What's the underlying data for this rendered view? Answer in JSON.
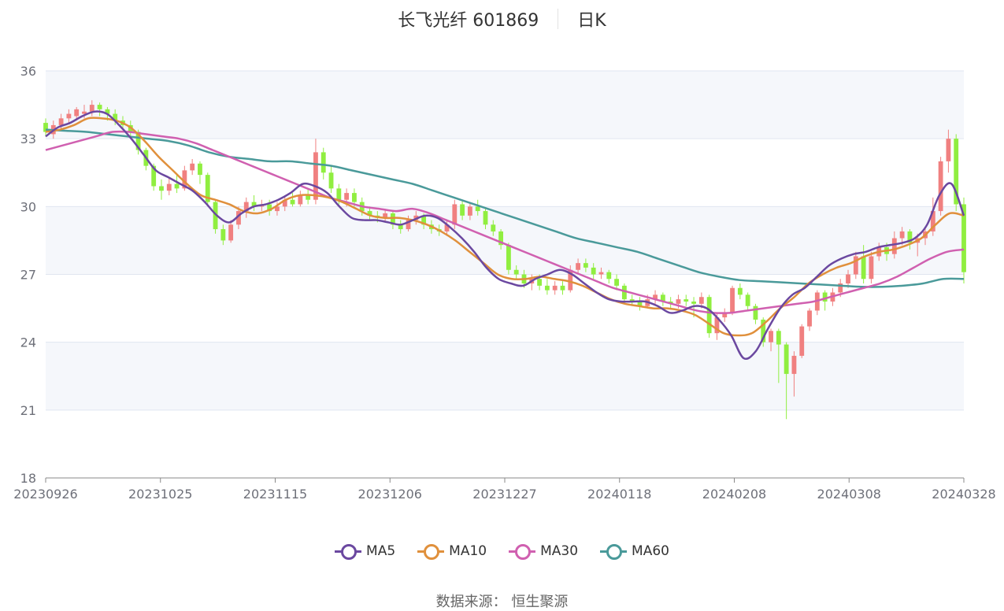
{
  "title": {
    "name": "长飞光纤 601869",
    "period": "日K"
  },
  "source_text": "数据来源： 恒生聚源",
  "colors": {
    "up": "#f08080",
    "down": "#90ee40",
    "ma5": "#6b48a0",
    "ma10": "#e0903c",
    "ma30": "#d060b0",
    "ma60": "#4a9a9a",
    "grid": "#e0e6f0",
    "band": "#f5f7fb",
    "axis": "#888888",
    "tick_text": "#6e7079"
  },
  "chart_data": {
    "type": "candlestick",
    "title": "长飞光纤 601869",
    "ylim": [
      18,
      36
    ],
    "y_ticks": [
      18,
      21,
      24,
      27,
      30,
      33,
      36
    ],
    "x_tick_labels": [
      "20230926",
      "20231025",
      "20231115",
      "20231206",
      "20231227",
      "20240118",
      "20240208",
      "20240308",
      "20240328"
    ],
    "bar_count": 120,
    "legend": [
      "MA5",
      "MA10",
      "MA30",
      "MA60"
    ],
    "candles": [
      [
        33.7,
        33.3,
        33.9,
        33.1
      ],
      [
        33.2,
        33.6,
        33.8,
        33.0
      ],
      [
        33.6,
        33.9,
        34.1,
        33.4
      ],
      [
        33.9,
        34.1,
        34.3,
        33.7
      ],
      [
        34.0,
        34.3,
        34.4,
        33.8
      ],
      [
        34.1,
        34.2,
        34.5,
        33.9
      ],
      [
        34.2,
        34.5,
        34.7,
        34.0
      ],
      [
        34.5,
        34.3,
        34.6,
        34.0
      ],
      [
        34.3,
        34.1,
        34.4,
        33.8
      ],
      [
        34.1,
        33.8,
        34.3,
        33.6
      ],
      [
        33.8,
        33.6,
        34.0,
        33.4
      ],
      [
        33.6,
        33.3,
        33.8,
        33.0
      ],
      [
        33.3,
        32.5,
        33.4,
        32.3
      ],
      [
        32.5,
        31.8,
        32.6,
        31.6
      ],
      [
        31.8,
        30.9,
        31.9,
        30.7
      ],
      [
        30.9,
        30.7,
        31.2,
        30.3
      ],
      [
        30.7,
        31.0,
        31.3,
        30.5
      ],
      [
        31.0,
        30.8,
        31.4,
        30.6
      ],
      [
        30.8,
        31.6,
        31.8,
        30.7
      ],
      [
        31.6,
        31.9,
        32.1,
        31.4
      ],
      [
        31.9,
        31.4,
        32.0,
        31.0
      ],
      [
        31.4,
        30.2,
        31.5,
        30.0
      ],
      [
        30.2,
        29.0,
        30.3,
        28.8
      ],
      [
        29.0,
        28.5,
        29.2,
        28.3
      ],
      [
        28.5,
        29.2,
        29.4,
        28.4
      ],
      [
        29.2,
        29.8,
        30.0,
        29.0
      ],
      [
        29.8,
        30.2,
        30.4,
        29.5
      ],
      [
        30.2,
        30.0,
        30.5,
        29.8
      ],
      [
        30.0,
        30.1,
        30.3,
        29.8
      ],
      [
        30.1,
        29.8,
        30.3,
        29.6
      ],
      [
        29.8,
        30.0,
        30.2,
        29.6
      ],
      [
        30.0,
        30.3,
        30.5,
        29.8
      ],
      [
        30.3,
        30.1,
        30.6,
        30.0
      ],
      [
        30.1,
        30.5,
        30.7,
        30.0
      ],
      [
        30.5,
        30.3,
        30.8,
        30.1
      ],
      [
        30.3,
        32.4,
        33.0,
        30.1
      ],
      [
        32.4,
        31.5,
        32.6,
        31.2
      ],
      [
        31.5,
        30.8,
        31.8,
        30.6
      ],
      [
        30.8,
        30.3,
        31.0,
        30.1
      ],
      [
        30.3,
        30.6,
        30.8,
        30.0
      ],
      [
        30.6,
        30.2,
        30.8,
        30.0
      ],
      [
        30.2,
        29.8,
        30.4,
        29.6
      ],
      [
        29.8,
        29.6,
        30.0,
        29.4
      ],
      [
        29.6,
        29.5,
        29.8,
        29.3
      ],
      [
        29.5,
        29.7,
        29.9,
        29.3
      ],
      [
        29.7,
        29.2,
        29.8,
        29.0
      ],
      [
        29.2,
        29.0,
        29.4,
        28.8
      ],
      [
        29.0,
        29.4,
        29.6,
        28.9
      ],
      [
        29.4,
        29.6,
        29.8,
        29.2
      ],
      [
        29.6,
        29.2,
        29.7,
        29.0
      ],
      [
        29.2,
        29.0,
        29.4,
        28.8
      ],
      [
        29.0,
        28.9,
        29.2,
        28.7
      ],
      [
        28.9,
        29.2,
        29.4,
        28.7
      ],
      [
        29.2,
        30.1,
        30.3,
        29.0
      ],
      [
        30.1,
        29.6,
        30.3,
        29.4
      ],
      [
        29.6,
        30.0,
        30.2,
        29.4
      ],
      [
        30.0,
        29.8,
        30.3,
        29.6
      ],
      [
        29.8,
        29.2,
        29.9,
        29.0
      ],
      [
        29.2,
        28.9,
        29.4,
        28.7
      ],
      [
        28.9,
        28.3,
        29.0,
        28.1
      ],
      [
        28.3,
        27.2,
        28.4,
        27.0
      ],
      [
        27.2,
        27.0,
        27.4,
        26.8
      ],
      [
        27.0,
        26.6,
        27.2,
        26.4
      ],
      [
        26.6,
        26.8,
        27.0,
        26.3
      ],
      [
        26.8,
        26.5,
        27.0,
        26.3
      ],
      [
        26.5,
        26.3,
        26.8,
        26.1
      ],
      [
        26.3,
        26.5,
        26.7,
        26.1
      ],
      [
        26.5,
        26.3,
        26.7,
        26.1
      ],
      [
        26.3,
        27.2,
        27.4,
        26.2
      ],
      [
        27.2,
        27.5,
        27.7,
        27.0
      ],
      [
        27.5,
        27.3,
        27.7,
        27.1
      ],
      [
        27.3,
        27.0,
        27.5,
        26.8
      ],
      [
        27.0,
        27.1,
        27.3,
        26.8
      ],
      [
        27.1,
        26.8,
        27.2,
        26.6
      ],
      [
        26.8,
        26.5,
        27.0,
        26.3
      ],
      [
        26.5,
        25.9,
        26.6,
        25.7
      ],
      [
        25.9,
        25.8,
        26.1,
        25.6
      ],
      [
        25.8,
        25.6,
        26.0,
        25.4
      ],
      [
        25.6,
        25.9,
        26.1,
        25.5
      ],
      [
        25.9,
        26.1,
        26.3,
        25.7
      ],
      [
        26.1,
        25.8,
        26.2,
        25.6
      ],
      [
        25.8,
        25.7,
        26.0,
        25.5
      ],
      [
        25.7,
        25.9,
        26.1,
        25.5
      ],
      [
        25.9,
        25.8,
        26.1,
        25.6
      ],
      [
        25.8,
        25.7,
        26.0,
        25.1
      ],
      [
        25.7,
        26.0,
        26.2,
        25.5
      ],
      [
        26.0,
        24.4,
        26.1,
        24.2
      ],
      [
        24.4,
        25.1,
        25.3,
        24.1
      ],
      [
        25.1,
        25.3,
        25.5,
        24.9
      ],
      [
        25.3,
        26.4,
        26.5,
        25.2
      ],
      [
        26.4,
        26.1,
        26.6,
        25.9
      ],
      [
        26.1,
        25.6,
        26.2,
        25.4
      ],
      [
        25.6,
        25.0,
        25.7,
        24.8
      ],
      [
        25.0,
        24.0,
        25.1,
        23.8
      ],
      [
        24.0,
        24.5,
        24.6,
        23.6
      ],
      [
        24.5,
        23.9,
        24.6,
        22.2
      ],
      [
        23.9,
        22.6,
        24.0,
        20.6
      ],
      [
        22.6,
        23.4,
        23.6,
        21.6
      ],
      [
        23.4,
        24.7,
        24.8,
        23.3
      ],
      [
        24.7,
        25.4,
        25.5,
        24.5
      ],
      [
        25.4,
        26.2,
        26.3,
        25.2
      ],
      [
        26.2,
        25.8,
        26.3,
        25.4
      ],
      [
        25.8,
        26.2,
        26.4,
        25.6
      ],
      [
        26.2,
        26.6,
        26.8,
        26.0
      ],
      [
        26.6,
        27.0,
        27.2,
        26.4
      ],
      [
        27.0,
        27.8,
        28.0,
        26.8
      ],
      [
        27.8,
        26.8,
        28.3,
        26.6
      ],
      [
        26.8,
        27.8,
        28.0,
        26.6
      ],
      [
        27.8,
        28.2,
        28.4,
        27.6
      ],
      [
        28.2,
        27.9,
        28.4,
        27.6
      ],
      [
        27.9,
        28.6,
        28.9,
        27.7
      ],
      [
        28.6,
        28.9,
        29.1,
        28.3
      ],
      [
        28.9,
        28.4,
        29.0,
        28.1
      ],
      [
        28.4,
        28.6,
        28.8,
        27.8
      ],
      [
        28.6,
        28.9,
        29.1,
        28.3
      ],
      [
        28.9,
        29.8,
        30.4,
        28.7
      ],
      [
        29.8,
        32.0,
        32.2,
        29.6
      ],
      [
        32.0,
        33.0,
        33.4,
        31.5
      ],
      [
        33.0,
        30.1,
        33.2,
        29.8
      ],
      [
        30.1,
        27.1,
        30.4,
        26.6
      ]
    ],
    "ma5": [
      33.1,
      33.5,
      33.7,
      34.0,
      34.2,
      34.1,
      33.6,
      33.0,
      32.3,
      31.6,
      31.3,
      31.0,
      30.7,
      30.2,
      29.6,
      29.3,
      29.7,
      30.0,
      30.1,
      30.3,
      30.6,
      31.0,
      30.9,
      30.6,
      30.0,
      29.5,
      29.4,
      29.4,
      29.3,
      29.2,
      29.4,
      29.6,
      29.5,
      29.1,
      28.6,
      28.0,
      27.3,
      26.8,
      26.6,
      26.5,
      26.8,
      27.0,
      27.2,
      27.0,
      26.6,
      26.2,
      25.9,
      25.8,
      25.8,
      25.8,
      25.6,
      25.3,
      25.4,
      25.6,
      25.5,
      25.0,
      24.3,
      23.3,
      23.6,
      24.6,
      25.5,
      26.1,
      26.4,
      26.9,
      27.4,
      27.7,
      27.9,
      28.0,
      28.2,
      28.3,
      28.4,
      28.6,
      29.2,
      30.5,
      31.0,
      29.6
    ],
    "ma10": [
      33.3,
      33.4,
      33.6,
      33.9,
      33.9,
      33.8,
      33.5,
      32.9,
      32.2,
      31.6,
      31.0,
      30.5,
      30.3,
      30.1,
      29.8,
      29.7,
      29.9,
      30.3,
      30.5,
      30.5,
      30.4,
      30.2,
      29.9,
      29.6,
      29.5,
      29.5,
      29.4,
      29.2,
      28.9,
      28.5,
      28.0,
      27.5,
      27.0,
      26.8,
      26.8,
      26.9,
      26.8,
      26.7,
      26.5,
      26.2,
      25.9,
      25.7,
      25.6,
      25.5,
      25.5,
      25.4,
      25.2,
      24.8,
      24.4,
      24.3,
      24.4,
      24.9,
      25.5,
      26.0,
      26.6,
      27.0,
      27.3,
      27.5,
      27.8,
      28.0,
      28.1,
      28.3,
      28.6,
      29.2,
      29.7,
      29.6
    ],
    "ma30": [
      32.5,
      32.7,
      32.9,
      33.1,
      33.3,
      33.3,
      33.2,
      33.1,
      33.0,
      32.8,
      32.5,
      32.2,
      31.9,
      31.6,
      31.3,
      31.0,
      30.7,
      30.4,
      30.2,
      30.0,
      29.9,
      29.8,
      29.9,
      29.7,
      29.4,
      29.1,
      28.8,
      28.5,
      28.2,
      27.9,
      27.6,
      27.3,
      27.0,
      26.7,
      26.4,
      26.2,
      26.0,
      25.8,
      25.6,
      25.4,
      25.3,
      25.3,
      25.4,
      25.5,
      25.6,
      25.7,
      25.8,
      26.0,
      26.2,
      26.4,
      26.6,
      26.9,
      27.3,
      27.7,
      28.0,
      28.1
    ],
    "ma60": [
      33.4,
      33.35,
      33.3,
      33.2,
      33.1,
      33.0,
      32.9,
      32.7,
      32.4,
      32.2,
      32.1,
      32.0,
      32.0,
      31.9,
      31.8,
      31.6,
      31.4,
      31.2,
      31.0,
      30.7,
      30.4,
      30.1,
      29.8,
      29.5,
      29.2,
      28.9,
      28.6,
      28.4,
      28.2,
      28.0,
      27.7,
      27.4,
      27.1,
      26.9,
      26.75,
      26.7,
      26.65,
      26.6,
      26.55,
      26.5,
      26.45,
      26.45,
      26.5,
      26.6,
      26.8,
      26.8
    ]
  }
}
